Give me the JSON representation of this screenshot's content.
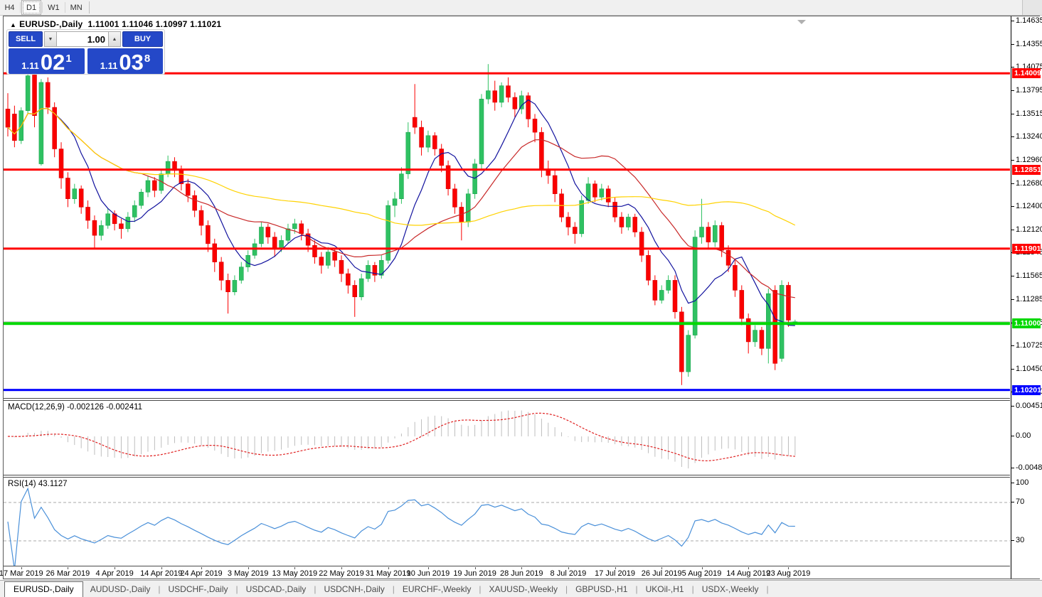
{
  "toolbar": {
    "timeframes": [
      {
        "label": "H4",
        "active": false
      },
      {
        "label": "D1",
        "active": true
      },
      {
        "label": "W1",
        "active": false
      },
      {
        "label": "MN",
        "active": false
      }
    ]
  },
  "header": {
    "collapse_icon": "▲",
    "symbol": "EURUSD-,Daily",
    "ohlc": "1.11001 1.11046 1.10997 1.11021"
  },
  "trade_panel": {
    "sell_label": "SELL",
    "buy_label": "BUY",
    "volume": "1.00",
    "accent": "#2448c8",
    "sell_price": {
      "prefix": "1.11",
      "big": "02",
      "pip": "1"
    },
    "buy_price": {
      "prefix": "1.11",
      "big": "03",
      "pip": "8"
    }
  },
  "chart_data": {
    "type": "candlestick",
    "symbol": "EURUSD-",
    "timeframe": "Daily",
    "ylim": [
      1.1013,
      1.1466
    ],
    "colors": {
      "bull": "#2fc162",
      "bull_stroke": "#13a04b",
      "bear": "#fa0000",
      "bear_stroke": "#d40000",
      "background": "#ffffff",
      "bid_line": "#b8b8b8",
      "shift_marker": "#b0b0b0"
    },
    "moving_averages": [
      {
        "period": 8,
        "color": "#12129e"
      },
      {
        "period": 21,
        "color": "#c82828"
      },
      {
        "period": 55,
        "color": "#ffd200"
      }
    ],
    "hlines": [
      {
        "price": 1.14009,
        "color": "#ff0000",
        "label": "1.14009",
        "thickness": 3
      },
      {
        "price": 1.12851,
        "color": "#ff0000",
        "label": "1.12851",
        "thickness": 3
      },
      {
        "price": 1.11901,
        "color": "#ff0000",
        "label": "1.11901",
        "thickness": 3
      },
      {
        "price": 1.11,
        "color": "#00d800",
        "label": "1.11000",
        "thickness": 4
      },
      {
        "price": 1.10201,
        "color": "#0000ff",
        "label": "1.10201",
        "thickness": 3
      }
    ],
    "bid_line_price": 1.11021,
    "price_ticks": [
      "1.14635",
      "1.14355",
      "1.14075",
      "1.13795",
      "1.13515",
      "1.13240",
      "1.12960",
      "1.12680",
      "1.12400",
      "1.12120",
      "1.11845",
      "1.11565",
      "1.11285",
      "1.11005",
      "1.10725",
      "1.10450",
      "1.10170"
    ],
    "x_labels": [
      {
        "label": "17 Mar 2019",
        "index": 2
      },
      {
        "label": "26 Mar 2019",
        "index": 9
      },
      {
        "label": "4 Apr 2019",
        "index": 16
      },
      {
        "label": "14 Apr 2019",
        "index": 23
      },
      {
        "label": "24 Apr 2019",
        "index": 29
      },
      {
        "label": "3 May 2019",
        "index": 36
      },
      {
        "label": "13 May 2019",
        "index": 43
      },
      {
        "label": "22 May 2019",
        "index": 50
      },
      {
        "label": "31 May 2019",
        "index": 57
      },
      {
        "label": "10 Jun 2019",
        "index": 63
      },
      {
        "label": "19 Jun 2019",
        "index": 70
      },
      {
        "label": "28 Jun 2019",
        "index": 77
      },
      {
        "label": "8 Jul 2019",
        "index": 84
      },
      {
        "label": "17 Jul 2019",
        "index": 91
      },
      {
        "label": "26 Jul 2019",
        "index": 98
      },
      {
        "label": "5 Aug 2019",
        "index": 104
      },
      {
        "label": "14 Aug 2019",
        "index": 111
      },
      {
        "label": "23 Aug 2019",
        "index": 117
      }
    ],
    "candles": [
      [
        1.1358,
        1.1377,
        1.1325,
        1.1336
      ],
      [
        1.1352,
        1.1362,
        1.1312,
        1.132
      ],
      [
        1.132,
        1.136,
        1.1316,
        1.1356
      ],
      [
        1.1356,
        1.1406,
        1.1352,
        1.1398
      ],
      [
        1.1399,
        1.1402,
        1.1336,
        1.135
      ],
      [
        1.1292,
        1.1394,
        1.129,
        1.139
      ],
      [
        1.139,
        1.1396,
        1.1352,
        1.136
      ],
      [
        1.136,
        1.1366,
        1.13,
        1.131
      ],
      [
        1.131,
        1.1318,
        1.1262,
        1.1275
      ],
      [
        1.1275,
        1.1282,
        1.124,
        1.125
      ],
      [
        1.125,
        1.1268,
        1.1244,
        1.1262
      ],
      [
        1.1262,
        1.1266,
        1.1232,
        1.124
      ],
      [
        1.124,
        1.1248,
        1.1214,
        1.1224
      ],
      [
        1.1224,
        1.123,
        1.119,
        1.1206
      ],
      [
        1.1206,
        1.1224,
        1.12,
        1.1218
      ],
      [
        1.1218,
        1.1238,
        1.1214,
        1.1232
      ],
      [
        1.1232,
        1.1236,
        1.1212,
        1.122
      ],
      [
        1.122,
        1.1226,
        1.1202,
        1.1214
      ],
      [
        1.1214,
        1.1234,
        1.121,
        1.1228
      ],
      [
        1.1228,
        1.1248,
        1.1222,
        1.1242
      ],
      [
        1.1242,
        1.1262,
        1.1238,
        1.1258
      ],
      [
        1.1258,
        1.1278,
        1.1252,
        1.1272
      ],
      [
        1.1272,
        1.1276,
        1.1252,
        1.126
      ],
      [
        1.126,
        1.1286,
        1.1256,
        1.128
      ],
      [
        1.128,
        1.1302,
        1.1276,
        1.1295
      ],
      [
        1.1295,
        1.13,
        1.1276,
        1.1284
      ],
      [
        1.1284,
        1.129,
        1.126,
        1.1268
      ],
      [
        1.1268,
        1.1274,
        1.1246,
        1.1254
      ],
      [
        1.1254,
        1.126,
        1.1228,
        1.1236
      ],
      [
        1.1236,
        1.1242,
        1.1206,
        1.1218
      ],
      [
        1.1218,
        1.1224,
        1.1186,
        1.1196
      ],
      [
        1.1196,
        1.1202,
        1.1162,
        1.1174
      ],
      [
        1.1174,
        1.118,
        1.114,
        1.1152
      ],
      [
        1.1152,
        1.116,
        1.1112,
        1.1138
      ],
      [
        1.1138,
        1.1158,
        1.1134,
        1.1152
      ],
      [
        1.1152,
        1.1174,
        1.1148,
        1.1168
      ],
      [
        1.1168,
        1.1188,
        1.1162,
        1.1182
      ],
      [
        1.1182,
        1.1202,
        1.1178,
        1.1196
      ],
      [
        1.1196,
        1.1222,
        1.1192,
        1.1216
      ],
      [
        1.1216,
        1.122,
        1.1196,
        1.1204
      ],
      [
        1.1204,
        1.121,
        1.118,
        1.119
      ],
      [
        1.119,
        1.1206,
        1.1186,
        1.12
      ],
      [
        1.12,
        1.122,
        1.1196,
        1.1214
      ],
      [
        1.1214,
        1.1226,
        1.1208,
        1.122
      ],
      [
        1.122,
        1.1224,
        1.12,
        1.1208
      ],
      [
        1.1208,
        1.1214,
        1.1186,
        1.1194
      ],
      [
        1.1194,
        1.12,
        1.1172,
        1.118
      ],
      [
        1.118,
        1.1186,
        1.116,
        1.117
      ],
      [
        1.117,
        1.1192,
        1.1166,
        1.1186
      ],
      [
        1.1186,
        1.119,
        1.1168,
        1.1176
      ],
      [
        1.1176,
        1.1182,
        1.115,
        1.116
      ],
      [
        1.116,
        1.1166,
        1.1136,
        1.1146
      ],
      [
        1.1146,
        1.1152,
        1.1108,
        1.1132
      ],
      [
        1.1132,
        1.116,
        1.1128,
        1.1154
      ],
      [
        1.1154,
        1.1176,
        1.115,
        1.117
      ],
      [
        1.117,
        1.1174,
        1.115,
        1.1158
      ],
      [
        1.1158,
        1.1182,
        1.1154,
        1.1176
      ],
      [
        1.1176,
        1.1248,
        1.1172,
        1.1242
      ],
      [
        1.1242,
        1.1258,
        1.1228,
        1.125
      ],
      [
        1.125,
        1.1288,
        1.1244,
        1.128
      ],
      [
        1.128,
        1.1342,
        1.1274,
        1.133
      ],
      [
        1.1348,
        1.1388,
        1.1328,
        1.1336
      ],
      [
        1.1336,
        1.1344,
        1.1302,
        1.1312
      ],
      [
        1.1312,
        1.1332,
        1.1306,
        1.1326
      ],
      [
        1.1326,
        1.133,
        1.1302,
        1.131
      ],
      [
        1.131,
        1.1316,
        1.1282,
        1.129
      ],
      [
        1.129,
        1.1296,
        1.1254,
        1.1262
      ],
      [
        1.1262,
        1.1268,
        1.1232,
        1.124
      ],
      [
        1.124,
        1.1246,
        1.12,
        1.1222
      ],
      [
        1.1222,
        1.1262,
        1.1216,
        1.1256
      ],
      [
        1.1256,
        1.1298,
        1.125,
        1.1292
      ],
      [
        1.1292,
        1.1376,
        1.1286,
        1.137
      ],
      [
        1.137,
        1.1412,
        1.1364,
        1.138
      ],
      [
        1.138,
        1.1392,
        1.1356,
        1.1366
      ],
      [
        1.1366,
        1.139,
        1.136,
        1.1386
      ],
      [
        1.1386,
        1.1396,
        1.1366,
        1.1372
      ],
      [
        1.1372,
        1.1378,
        1.1348,
        1.1358
      ],
      [
        1.1358,
        1.138,
        1.1352,
        1.1374
      ],
      [
        1.1374,
        1.1378,
        1.1336,
        1.1346
      ],
      [
        1.1346,
        1.1352,
        1.1318,
        1.133
      ],
      [
        1.133,
        1.1336,
        1.1276,
        1.1286
      ],
      [
        1.1286,
        1.1296,
        1.1268,
        1.1278
      ],
      [
        1.1278,
        1.1284,
        1.1246,
        1.1256
      ],
      [
        1.1256,
        1.1262,
        1.1222,
        1.1228
      ],
      [
        1.1228,
        1.1234,
        1.1206,
        1.1216
      ],
      [
        1.1216,
        1.1222,
        1.1196,
        1.1208
      ],
      [
        1.1208,
        1.1254,
        1.1204,
        1.1248
      ],
      [
        1.1248,
        1.1276,
        1.1244,
        1.1268
      ],
      [
        1.1268,
        1.1272,
        1.1246,
        1.1252
      ],
      [
        1.1252,
        1.1268,
        1.1248,
        1.1262
      ],
      [
        1.1262,
        1.1266,
        1.124,
        1.1246
      ],
      [
        1.1246,
        1.1252,
        1.1222,
        1.1228
      ],
      [
        1.1228,
        1.1234,
        1.1208,
        1.1216
      ],
      [
        1.1216,
        1.1232,
        1.1212,
        1.1228
      ],
      [
        1.1228,
        1.1232,
        1.1204,
        1.121
      ],
      [
        1.121,
        1.1216,
        1.1174,
        1.1182
      ],
      [
        1.1182,
        1.1188,
        1.1146,
        1.1152
      ],
      [
        1.1152,
        1.1158,
        1.1122,
        1.1128
      ],
      [
        1.1128,
        1.1146,
        1.1124,
        1.114
      ],
      [
        1.114,
        1.1158,
        1.1136,
        1.1152
      ],
      [
        1.1152,
        1.1158,
        1.1106,
        1.1114
      ],
      [
        1.1114,
        1.112,
        1.1026,
        1.1042
      ],
      [
        1.1042,
        1.1092,
        1.1036,
        1.1086
      ],
      [
        1.1086,
        1.1212,
        1.1082,
        1.1204
      ],
      [
        1.1204,
        1.125,
        1.1196,
        1.1216
      ],
      [
        1.1216,
        1.1222,
        1.119,
        1.1198
      ],
      [
        1.1198,
        1.1224,
        1.1192,
        1.1218
      ],
      [
        1.1218,
        1.1222,
        1.118,
        1.1188
      ],
      [
        1.1188,
        1.1194,
        1.1162,
        1.117
      ],
      [
        1.117,
        1.1176,
        1.1132,
        1.114
      ],
      [
        1.114,
        1.1146,
        1.1098,
        1.1106
      ],
      [
        1.1106,
        1.1112,
        1.1064,
        1.1078
      ],
      [
        1.1078,
        1.1098,
        1.1072,
        1.1092
      ],
      [
        1.1092,
        1.1096,
        1.1062,
        1.107
      ],
      [
        1.107,
        1.1142,
        1.1052,
        1.1136
      ],
      [
        1.114,
        1.1146,
        1.1044,
        1.1052
      ],
      [
        1.1058,
        1.1152,
        1.1054,
        1.1146
      ],
      [
        1.1146,
        1.115,
        1.1096,
        1.1104
      ],
      [
        1.11001,
        1.11046,
        1.10997,
        1.11021
      ]
    ],
    "macd": {
      "name": "MACD(12,26,9)",
      "values": "-0.002126 -0.002411",
      "fast": 12,
      "slow": 26,
      "signal": 9,
      "axis_max": "0.004517",
      "axis_zero": "0.00",
      "axis_min": "-0.004806",
      "bar_color": "#bebebe",
      "signal_color": "#e02020"
    },
    "rsi": {
      "name": "RSI(14)",
      "value": "43.1127",
      "period": 14,
      "axis": [
        "100",
        "70",
        "30"
      ],
      "levels": [
        70,
        30
      ],
      "color": "#4a90d9",
      "level_color": "#aaaaaa"
    }
  },
  "tabs": {
    "items": [
      {
        "label": "EURUSD-,Daily",
        "active": true
      },
      {
        "label": "AUDUSD-,Daily",
        "active": false
      },
      {
        "label": "USDCHF-,Daily",
        "active": false
      },
      {
        "label": "USDCAD-,Daily",
        "active": false
      },
      {
        "label": "USDCNH-,Daily",
        "active": false
      },
      {
        "label": "EURCHF-,Weekly",
        "active": false
      },
      {
        "label": "XAUUSD-,Weekly",
        "active": false
      },
      {
        "label": "GBPUSD-,H1",
        "active": false
      },
      {
        "label": "UKOil-,H1",
        "active": false
      },
      {
        "label": "USDX-,Weekly",
        "active": false
      }
    ]
  }
}
